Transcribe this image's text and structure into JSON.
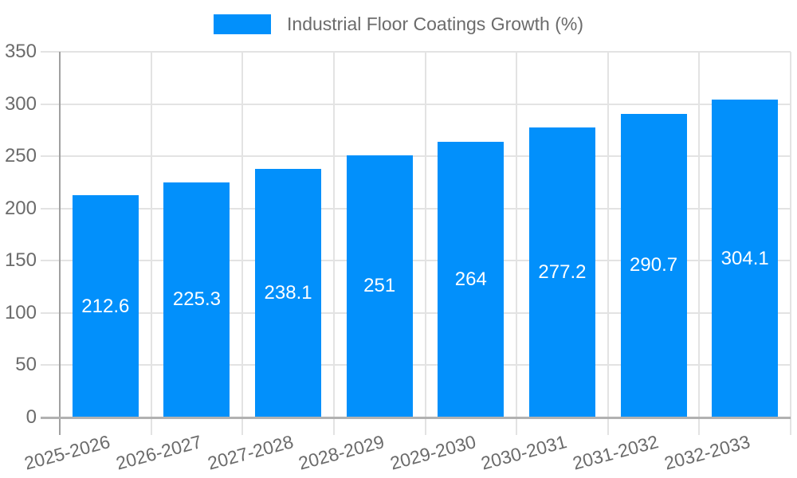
{
  "legend": {
    "label": "Industrial Floor Coatings Growth (%)"
  },
  "chart_data": {
    "type": "bar",
    "title": "Industrial Floor Coatings Growth (%)",
    "categories": [
      "2025-2026",
      "2026-2027",
      "2027-2028",
      "2028-2029",
      "2029-2030",
      "2030-2031",
      "2031-2032",
      "2032-2033"
    ],
    "values": [
      212.6,
      225.3,
      238.1,
      251,
      264,
      277.2,
      290.7,
      304.1
    ],
    "value_labels": [
      "212.6",
      "225.3",
      "238.1",
      "251",
      "264",
      "277.2",
      "290.7",
      "304.1"
    ],
    "xlabel": "",
    "ylabel": "",
    "ylim": [
      0,
      350
    ],
    "yticks": [
      0,
      50,
      100,
      150,
      200,
      250,
      300,
      350
    ],
    "grid": true,
    "legend_position": "top-center",
    "bar_color": "#0290fb",
    "value_label_color": "#ffffff",
    "axis_text_color": "#6b6b6b"
  }
}
